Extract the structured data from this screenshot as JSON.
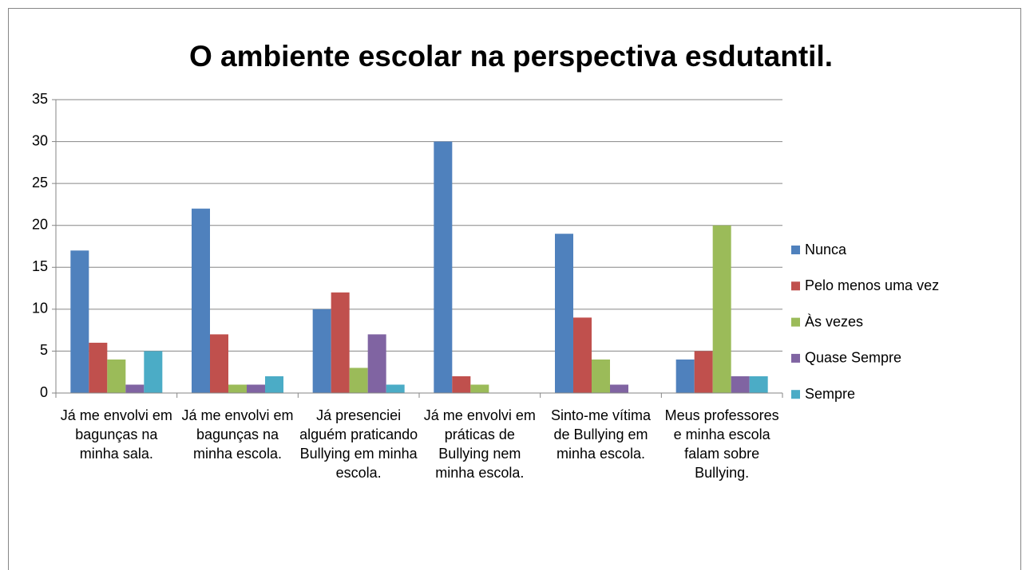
{
  "chart_data": {
    "type": "bar",
    "title": "O ambiente escolar na perspectiva esdutantil.",
    "categories": [
      "Já me envolvi em bagunças na minha sala.",
      "Já me envolvi em bagunças na minha escola.",
      "Já presenciei alguém praticando Bullying em minha escola.",
      "Já me envolvi em práticas de Bullying nem minha escola.",
      "Sinto-me vítima de Bullying em minha escola.",
      "Meus professores e minha escola falam sobre Bullying."
    ],
    "series": [
      {
        "name": "Nunca",
        "color": "#4f81bd",
        "values": [
          17,
          22,
          10,
          30,
          19,
          4
        ]
      },
      {
        "name": "Pelo menos uma vez",
        "color": "#c0504d",
        "values": [
          6,
          7,
          12,
          2,
          9,
          5
        ]
      },
      {
        "name": "Às vezes",
        "color": "#9bbb59",
        "values": [
          4,
          1,
          3,
          1,
          4,
          20
        ]
      },
      {
        "name": "Quase Sempre",
        "color": "#8064a2",
        "values": [
          1,
          1,
          7,
          0,
          1,
          2
        ]
      },
      {
        "name": "Sempre",
        "color": "#4bacc6",
        "values": [
          5,
          2,
          1,
          0,
          0,
          2
        ]
      }
    ],
    "ylim": [
      0,
      35
    ],
    "yticks": [
      0,
      5,
      10,
      15,
      20,
      25,
      30,
      35
    ],
    "grid": true,
    "legend": "right"
  }
}
